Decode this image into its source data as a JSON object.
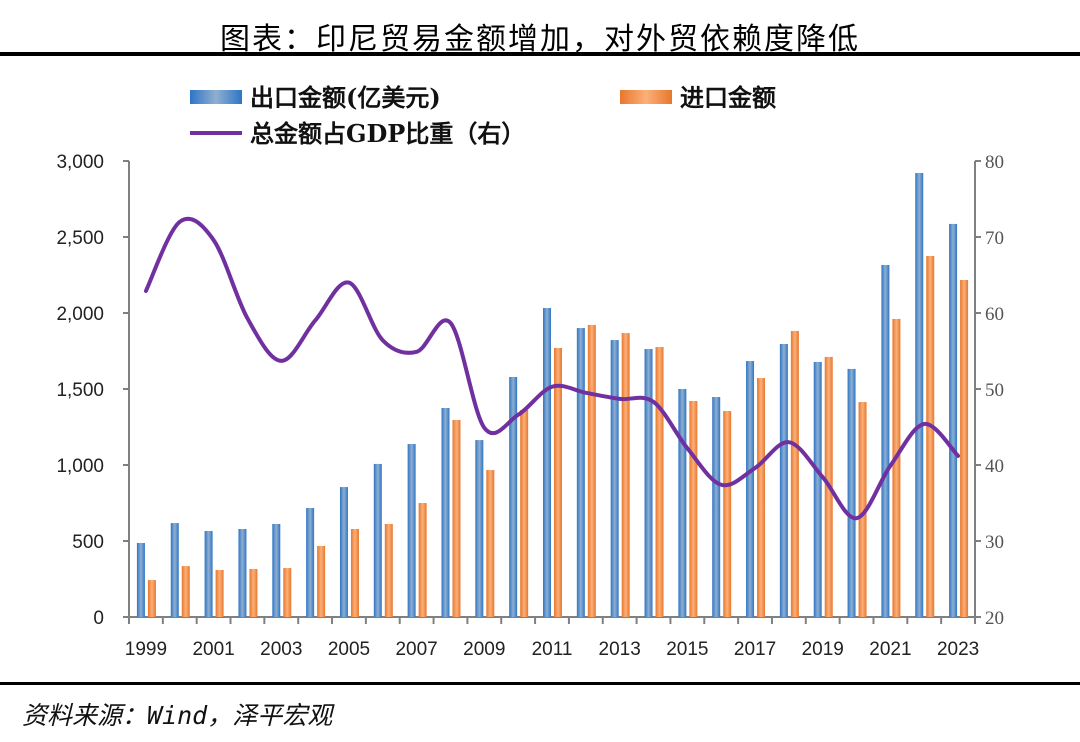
{
  "header": {
    "title": "图表：印尼贸易金额增加，对外贸依赖度降低"
  },
  "footer": {
    "source": "资料来源：Wind，泽平宏观"
  },
  "colors": {
    "export": "#4F81BD",
    "export_edge": "#2E75C6",
    "import": "#F79646",
    "import_edge": "#E8772C",
    "line": "#7030A0",
    "axis": "#808080"
  },
  "chart_data": {
    "type": "bar",
    "title": "图表：印尼贸易金额增加，对外贸依赖度降低",
    "xlabel": "",
    "ylabel": "",
    "categories": [
      "1999",
      "2000",
      "2001",
      "2002",
      "2003",
      "2004",
      "2005",
      "2006",
      "2007",
      "2008",
      "2009",
      "2010",
      "2011",
      "2012",
      "2013",
      "2014",
      "2015",
      "2016",
      "2017",
      "2018",
      "2019",
      "2020",
      "2021",
      "2022",
      "2023"
    ],
    "x_tick_labels": [
      "1999",
      "2001",
      "2003",
      "2005",
      "2007",
      "2009",
      "2011",
      "2013",
      "2015",
      "2017",
      "2019",
      "2021",
      "2023"
    ],
    "ylim": [
      0,
      3000
    ],
    "y_ticks": [
      0,
      500,
      1000,
      1500,
      2000,
      2500,
      3000
    ],
    "y_tick_labels": [
      "0",
      "500",
      "1,000",
      "1,500",
      "2,000",
      "2,500",
      "3,000"
    ],
    "y2lim": [
      20,
      80
    ],
    "y2_ticks": [
      20,
      30,
      40,
      50,
      60,
      70,
      80
    ],
    "y2_tick_labels": [
      "20",
      "30",
      "40",
      "50",
      "60",
      "70",
      "80"
    ],
    "grid": false,
    "legend_position": "top",
    "series": [
      {
        "name": "出口金额(亿美元)",
        "type": "bar",
        "axis": "left",
        "values": [
          487,
          618,
          566,
          579,
          612,
          717,
          855,
          1007,
          1138,
          1375,
          1164,
          1579,
          2033,
          1901,
          1822,
          1763,
          1500,
          1447,
          1684,
          1796,
          1678,
          1632,
          2316,
          2921,
          2586
        ]
      },
      {
        "name": "进口金额",
        "type": "bar",
        "axis": "left",
        "values": [
          243,
          335,
          309,
          316,
          322,
          467,
          579,
          612,
          750,
          1296,
          967,
          1362,
          1770,
          1921,
          1868,
          1776,
          1421,
          1355,
          1572,
          1882,
          1711,
          1414,
          1961,
          2375,
          2217
        ]
      },
      {
        "name": "总金额占GDP比重（右）",
        "type": "line",
        "axis": "right",
        "values": [
          62.9,
          72.0,
          69.6,
          59.3,
          53.7,
          59.0,
          64.0,
          56.4,
          54.9,
          58.7,
          44.9,
          46.6,
          50.3,
          49.5,
          48.7,
          48.3,
          42.2,
          37.4,
          39.6,
          43.0,
          38.4,
          33.0,
          39.9,
          45.4,
          41.2
        ]
      }
    ]
  }
}
